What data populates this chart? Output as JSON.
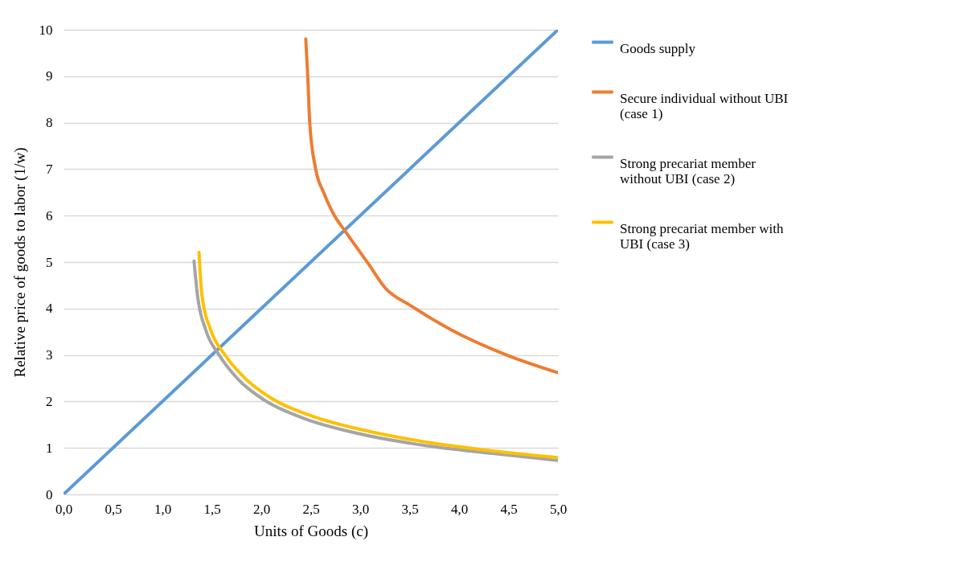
{
  "chart_data": {
    "type": "line",
    "xlabel": "Units of Goods (c)",
    "ylabel": "Relative price of goods to labor  (1/w)",
    "xlim": [
      0,
      5
    ],
    "ylim": [
      0,
      10
    ],
    "xticks": [
      {
        "value": 0,
        "label": "0,0"
      },
      {
        "value": 0.5,
        "label": "0,5"
      },
      {
        "value": 1,
        "label": "1,0"
      },
      {
        "value": 1.5,
        "label": "1,5"
      },
      {
        "value": 2,
        "label": "2,0"
      },
      {
        "value": 2.5,
        "label": "2,5"
      },
      {
        "value": 3,
        "label": "3,0"
      },
      {
        "value": 3.5,
        "label": "3,5"
      },
      {
        "value": 4,
        "label": "4,0"
      },
      {
        "value": 4.5,
        "label": "4,5"
      },
      {
        "value": 5,
        "label": "5,0"
      }
    ],
    "yticks": [
      0,
      1,
      2,
      3,
      4,
      5,
      6,
      7,
      8,
      9,
      10
    ],
    "grid": "y",
    "legend": "right",
    "marker": "none",
    "line_style": "solid",
    "series": [
      {
        "name": "Goods supply",
        "color": "#5b9bd5",
        "x": [
          0,
          5
        ],
        "values": [
          0,
          10
        ]
      },
      {
        "name": "Secure individual without UBI (case 1)",
        "color": "#ed7d31",
        "x": [
          2.45,
          2.47,
          2.49,
          2.55,
          2.63,
          2.74,
          2.85,
          3.09,
          3.25,
          3.52,
          3.93,
          4.47,
          5.0
        ],
        "values": [
          9.8,
          9.0,
          8.0,
          7.0,
          6.5,
          6.0,
          5.66,
          4.94,
          4.45,
          4.05,
          3.53,
          3.01,
          2.62
        ]
      },
      {
        "name": "Strong precariat member without UBI (case 2)",
        "color": "#a5a5a5",
        "x": [
          1.32,
          1.355,
          1.44,
          1.57,
          1.76,
          2.03,
          2.44,
          2.98,
          3.66,
          4.34,
          5.0
        ],
        "values": [
          5.02,
          4.28,
          3.53,
          3.01,
          2.49,
          2.03,
          1.63,
          1.31,
          1.05,
          0.88,
          0.73
        ]
      },
      {
        "name": "Strong precariat member with UBI (case 3)",
        "color": "#ffc000",
        "x": [
          1.37,
          1.4,
          1.49,
          1.63,
          1.84,
          2.11,
          2.52,
          3.06,
          3.71,
          4.36,
          5.0
        ],
        "values": [
          5.21,
          4.28,
          3.53,
          3.01,
          2.49,
          2.06,
          1.68,
          1.37,
          1.11,
          0.93,
          0.79
        ]
      }
    ]
  }
}
